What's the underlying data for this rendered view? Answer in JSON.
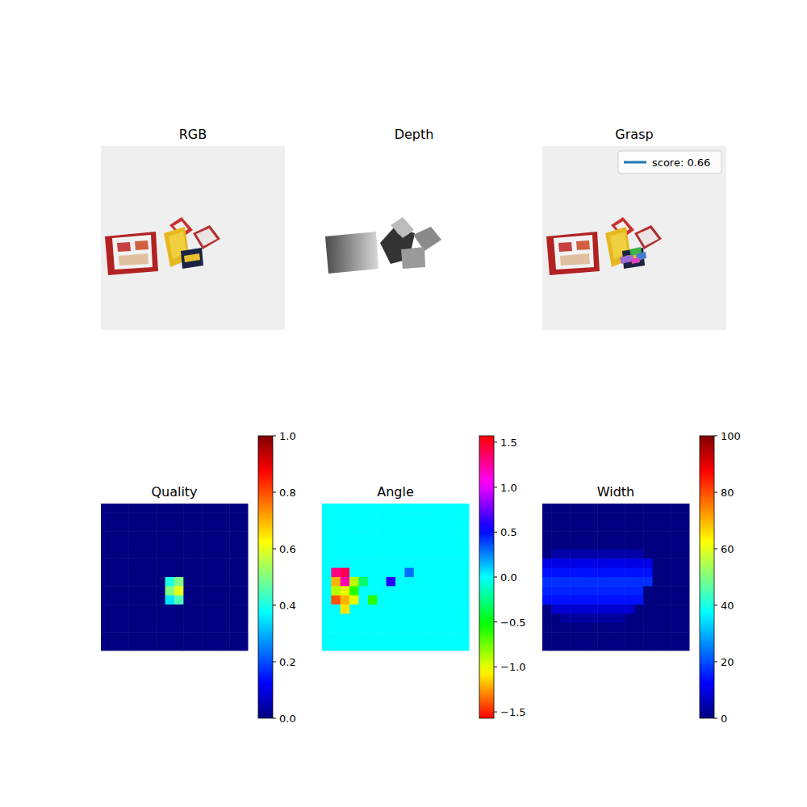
{
  "chart_data": [
    {
      "type": "image",
      "title": "RGB",
      "tick_labels": false
    },
    {
      "type": "image",
      "title": "Depth",
      "tick_labels": false
    },
    {
      "type": "image",
      "title": "Grasp",
      "tick_labels": false,
      "legend": "upper right",
      "series": [
        {
          "name": "score: 0.66",
          "color": "#1f77b4"
        }
      ]
    },
    {
      "type": "heatmap",
      "title": "Quality",
      "tick_labels": false,
      "color": "jet",
      "colorbar": {
        "range": [
          0,
          1
        ],
        "ticks": [
          {
            "value": 0,
            "label": "0.0"
          },
          {
            "value": 0.2,
            "label": "0.2"
          },
          {
            "value": 0.4,
            "label": "0.4"
          },
          {
            "value": 0.6,
            "label": "0.6"
          },
          {
            "value": 0.8,
            "label": "0.8"
          },
          {
            "value": 1,
            "label": "1.0"
          }
        ]
      },
      "cells": [
        [
          0,
          0,
          0,
          0,
          0,
          0,
          0,
          0,
          0,
          0,
          0,
          0,
          0,
          0,
          0,
          0
        ],
        [
          0,
          0,
          0,
          0,
          0,
          0,
          0,
          0,
          0,
          0,
          0,
          0,
          0,
          0,
          0,
          0
        ],
        [
          0,
          0,
          0,
          0,
          0,
          0,
          0,
          0,
          0,
          0,
          0,
          0,
          0,
          0,
          0,
          0
        ],
        [
          0,
          0,
          0,
          0,
          0,
          0,
          0,
          0,
          0,
          0,
          0,
          0,
          0,
          0,
          0,
          0
        ],
        [
          0,
          0,
          0,
          0,
          0,
          0,
          0,
          0,
          0,
          0,
          0,
          0,
          0,
          0,
          0,
          0
        ],
        [
          0,
          0,
          0,
          0,
          0,
          0,
          0,
          0,
          0,
          0,
          0,
          0,
          0,
          0,
          0,
          0
        ],
        [
          0,
          0,
          0,
          0,
          0,
          0,
          0,
          0,
          0,
          0,
          0,
          0,
          0,
          0,
          0,
          0
        ],
        [
          0,
          0,
          0,
          0,
          0,
          0,
          0,
          0,
          0,
          0,
          0,
          0,
          0,
          0,
          0,
          0
        ],
        [
          0,
          0,
          0,
          0,
          0,
          0,
          0,
          0.4,
          0.5,
          0,
          0,
          0,
          0,
          0,
          0,
          0
        ],
        [
          0,
          0,
          0,
          0,
          0,
          0,
          0,
          0.5,
          0.6,
          0,
          0,
          0,
          0,
          0,
          0,
          0
        ],
        [
          0,
          0,
          0,
          0,
          0,
          0,
          0,
          0.35,
          0.45,
          0,
          0,
          0,
          0,
          0,
          0,
          0
        ],
        [
          0,
          0,
          0,
          0,
          0,
          0,
          0,
          0,
          0,
          0,
          0,
          0,
          0,
          0,
          0,
          0
        ],
        [
          0,
          0,
          0,
          0,
          0,
          0,
          0,
          0,
          0,
          0,
          0,
          0,
          0,
          0,
          0,
          0
        ],
        [
          0,
          0,
          0,
          0,
          0,
          0,
          0,
          0,
          0,
          0,
          0,
          0,
          0,
          0,
          0,
          0
        ],
        [
          0,
          0,
          0,
          0,
          0,
          0,
          0,
          0,
          0,
          0,
          0,
          0,
          0,
          0,
          0,
          0
        ],
        [
          0,
          0,
          0,
          0,
          0,
          0,
          0,
          0,
          0,
          0,
          0,
          0,
          0,
          0,
          0,
          0
        ]
      ]
    },
    {
      "type": "heatmap",
      "title": "Angle",
      "tick_labels": false,
      "color": "hsv",
      "colorbar": {
        "range": [
          -1.5708,
          1.5708
        ],
        "ticks": [
          {
            "value": -1.5,
            "label": "−1.5"
          },
          {
            "value": -1.0,
            "label": "−1.0"
          },
          {
            "value": -0.5,
            "label": "−0.5"
          },
          {
            "value": 0,
            "label": "0.0"
          },
          {
            "value": 0.5,
            "label": "0.5"
          },
          {
            "value": 1.0,
            "label": "1.0"
          },
          {
            "value": 1.5,
            "label": "1.5"
          }
        ]
      },
      "cells": [
        [
          0,
          0,
          0,
          0,
          0,
          0,
          0,
          0,
          0,
          0,
          0,
          0,
          0,
          0,
          0,
          0
        ],
        [
          0,
          0,
          0,
          0,
          0,
          0,
          0,
          0,
          0,
          0,
          0,
          0,
          0,
          0,
          0,
          0
        ],
        [
          0,
          0,
          0,
          0,
          0,
          0,
          0,
          0,
          0,
          0,
          0,
          0,
          0,
          0,
          0,
          0
        ],
        [
          0,
          0,
          0,
          0,
          0,
          0,
          0,
          0,
          0,
          0,
          0,
          0,
          0,
          0,
          0,
          0
        ],
        [
          0,
          0,
          0,
          0,
          0,
          0,
          0,
          0,
          0,
          0,
          0,
          0,
          0,
          0,
          0,
          0
        ],
        [
          0,
          0,
          0,
          0,
          0,
          0,
          0,
          0,
          0,
          0,
          0,
          0,
          0,
          0,
          0,
          0
        ],
        [
          0,
          0,
          0,
          0,
          0,
          0,
          0,
          0,
          0,
          0,
          0,
          0,
          0,
          0,
          0,
          0
        ],
        [
          0,
          1.3,
          1.4,
          0,
          0,
          0,
          0,
          0,
          0,
          0.3,
          0,
          0,
          0,
          0,
          0,
          0
        ],
        [
          0,
          -1.2,
          1.2,
          -0.9,
          -0.3,
          0,
          0,
          0.6,
          0,
          0,
          0,
          0,
          0,
          0,
          0,
          0
        ],
        [
          0,
          -0.9,
          -1.0,
          -0.6,
          0,
          0,
          0,
          0,
          0,
          0,
          0,
          0,
          0,
          0,
          0,
          0
        ],
        [
          0,
          -1.4,
          -1.2,
          -1.0,
          0,
          -0.6,
          0,
          0,
          0,
          0,
          0,
          0,
          0,
          0,
          0,
          0
        ],
        [
          0,
          0,
          -1.1,
          0,
          0,
          0,
          0,
          0,
          0,
          0,
          0,
          0,
          0,
          0,
          0,
          0
        ],
        [
          0,
          0,
          0,
          0,
          0,
          0,
          0,
          0,
          0,
          0,
          0,
          0,
          0,
          0,
          0,
          0
        ],
        [
          0,
          0,
          0,
          0,
          0,
          0,
          0,
          0,
          0,
          0,
          0,
          0,
          0,
          0,
          0,
          0
        ],
        [
          0,
          0,
          0,
          0,
          0,
          0,
          0,
          0,
          0,
          0,
          0,
          0,
          0,
          0,
          0,
          0
        ],
        [
          0,
          0,
          0,
          0,
          0,
          0,
          0,
          0,
          0,
          0,
          0,
          0,
          0,
          0,
          0,
          0
        ]
      ]
    },
    {
      "type": "heatmap",
      "title": "Width",
      "tick_labels": false,
      "color": "jet",
      "colorbar": {
        "range": [
          0,
          100
        ],
        "ticks": [
          0,
          20,
          40,
          60,
          80,
          100
        ]
      },
      "cells": [
        [
          0,
          0,
          0,
          0,
          0,
          0,
          0,
          0,
          0,
          0,
          0,
          0,
          0,
          0,
          0,
          0
        ],
        [
          0,
          0,
          0,
          0,
          0,
          0,
          0,
          0,
          0,
          0,
          0,
          0,
          0,
          0,
          0,
          0
        ],
        [
          0,
          0,
          0,
          0,
          0,
          0,
          0,
          0,
          0,
          0,
          0,
          0,
          0,
          0,
          0,
          0
        ],
        [
          0,
          0,
          0,
          0,
          0,
          0,
          0,
          0,
          0,
          0,
          0,
          0,
          0,
          0,
          0,
          0
        ],
        [
          0,
          0,
          0,
          0,
          0,
          0,
          0,
          0,
          0,
          0,
          0,
          0,
          0,
          0,
          0,
          0
        ],
        [
          0,
          4,
          4,
          4,
          4,
          4,
          4,
          4,
          4,
          4,
          4,
          0,
          0,
          0,
          0,
          0
        ],
        [
          10,
          10,
          10,
          10,
          10,
          10,
          10,
          10,
          10,
          10,
          10,
          10,
          0,
          0,
          0,
          0
        ],
        [
          14,
          14,
          14,
          14,
          14,
          14,
          14,
          14,
          14,
          14,
          14,
          14,
          0,
          0,
          0,
          0
        ],
        [
          17,
          17,
          17,
          17,
          17,
          17,
          17,
          17,
          17,
          17,
          17,
          17,
          0,
          0,
          0,
          0
        ],
        [
          16,
          16,
          16,
          16,
          16,
          16,
          16,
          16,
          16,
          16,
          16,
          0,
          0,
          0,
          0,
          0
        ],
        [
          14,
          14,
          14,
          14,
          14,
          14,
          14,
          14,
          14,
          14,
          14,
          0,
          0,
          0,
          0,
          0
        ],
        [
          0,
          8,
          8,
          8,
          8,
          8,
          8,
          8,
          8,
          8,
          0,
          0,
          0,
          0,
          0,
          0
        ],
        [
          0,
          0,
          3,
          3,
          3,
          3,
          3,
          3,
          3,
          0,
          0,
          0,
          0,
          0,
          0,
          0
        ],
        [
          0,
          0,
          0,
          0,
          0,
          0,
          0,
          0,
          0,
          0,
          0,
          0,
          0,
          0,
          0,
          0
        ],
        [
          0,
          0,
          0,
          0,
          0,
          0,
          0,
          0,
          0,
          0,
          0,
          0,
          0,
          0,
          0,
          0
        ],
        [
          0,
          0,
          0,
          0,
          0,
          0,
          0,
          0,
          0,
          0,
          0,
          0,
          0,
          0,
          0,
          0
        ]
      ]
    }
  ]
}
